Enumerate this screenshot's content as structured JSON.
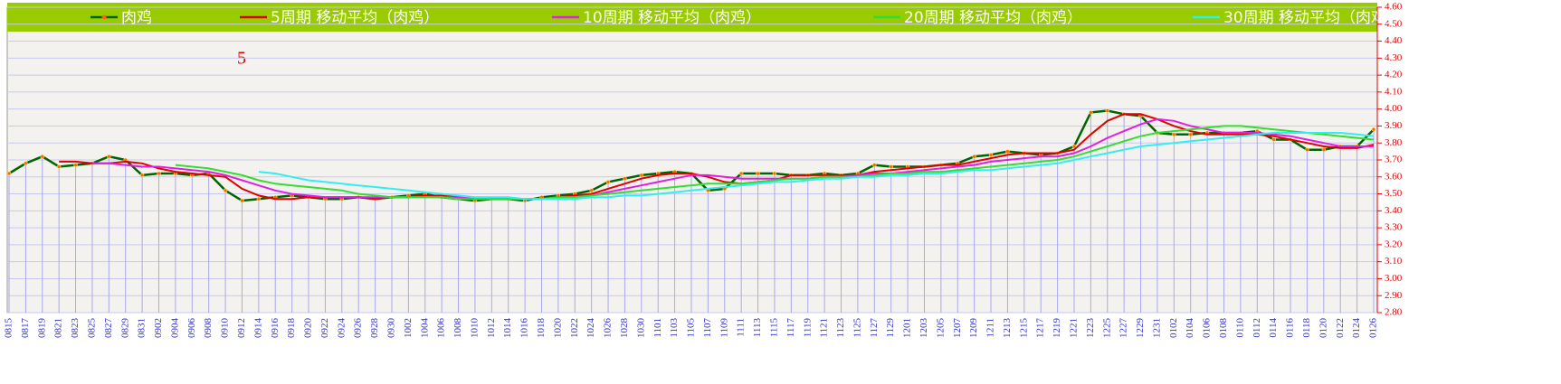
{
  "chart_data": {
    "type": "line",
    "annotations": [
      "5"
    ],
    "categories": [
      "0815",
      "0817",
      "0819",
      "0821",
      "0823",
      "0825",
      "0827",
      "0829",
      "0831",
      "0902",
      "0904",
      "0906",
      "0908",
      "0910",
      "0912",
      "0914",
      "0916",
      "0918",
      "0920",
      "0922",
      "0924",
      "0926",
      "0928",
      "0930",
      "1002",
      "1004",
      "1006",
      "1008",
      "1010",
      "1012",
      "1014",
      "1016",
      "1018",
      "1020",
      "1022",
      "1024",
      "1026",
      "1028",
      "1030",
      "1101",
      "1103",
      "1105",
      "1107",
      "1109",
      "1111",
      "1113",
      "1115",
      "1117",
      "1119",
      "1121",
      "1123",
      "1125",
      "1127",
      "1129",
      "1201",
      "1203",
      "1205",
      "1207",
      "1209",
      "1211",
      "1213",
      "1215",
      "1217",
      "1219",
      "1221",
      "1223",
      "1225",
      "1227",
      "1229",
      "1231",
      "0102",
      "0104",
      "0106",
      "0108",
      "0110",
      "0112",
      "0114",
      "0116",
      "0118",
      "0120",
      "0122",
      "0124",
      "0126"
    ],
    "series": [
      {
        "name": "肉鸡",
        "color": "#006400",
        "marker": "#ff6600",
        "values": [
          3.62,
          3.68,
          3.72,
          3.66,
          3.67,
          3.68,
          3.72,
          3.7,
          3.61,
          3.62,
          3.62,
          3.61,
          3.62,
          3.52,
          3.46,
          3.47,
          3.48,
          3.49,
          3.48,
          3.47,
          3.47,
          3.48,
          3.47,
          3.48,
          3.49,
          3.5,
          3.48,
          3.47,
          3.46,
          3.47,
          3.47,
          3.46,
          3.48,
          3.49,
          3.5,
          3.52,
          3.57,
          3.59,
          3.61,
          3.62,
          3.63,
          3.62,
          3.52,
          3.53,
          3.62,
          3.62,
          3.62,
          3.61,
          3.61,
          3.62,
          3.61,
          3.62,
          3.67,
          3.66,
          3.66,
          3.66,
          3.67,
          3.68,
          3.72,
          3.73,
          3.75,
          3.74,
          3.73,
          3.74,
          3.78,
          3.98,
          3.99,
          3.97,
          3.96,
          3.86,
          3.85,
          3.85,
          3.86,
          3.86,
          3.86,
          3.87,
          3.82,
          3.82,
          3.76,
          3.76,
          3.78,
          3.78,
          3.88
        ]
      },
      {
        "name": "5周期 移动平均（肉鸡）",
        "color": "#e00000",
        "values": [
          null,
          null,
          null,
          3.69,
          3.69,
          3.68,
          3.68,
          3.69,
          3.68,
          3.65,
          3.63,
          3.62,
          3.61,
          3.6,
          3.53,
          3.49,
          3.47,
          3.47,
          3.48,
          3.48,
          3.48,
          3.48,
          3.47,
          3.48,
          3.48,
          3.49,
          3.49,
          3.48,
          3.47,
          3.47,
          3.47,
          3.47,
          3.47,
          3.48,
          3.49,
          3.5,
          3.53,
          3.56,
          3.59,
          3.61,
          3.62,
          3.62,
          3.6,
          3.57,
          3.56,
          3.57,
          3.58,
          3.61,
          3.61,
          3.61,
          3.61,
          3.61,
          3.63,
          3.64,
          3.65,
          3.66,
          3.67,
          3.67,
          3.69,
          3.71,
          3.73,
          3.74,
          3.74,
          3.74,
          3.76,
          3.85,
          3.93,
          3.97,
          3.97,
          3.94,
          3.9,
          3.87,
          3.85,
          3.85,
          3.85,
          3.85,
          3.84,
          3.82,
          3.8,
          3.78,
          3.77,
          3.77,
          3.79
        ]
      },
      {
        "name": "10周期 移动平均（肉鸡）",
        "color": "#e020e0",
        "values": [
          null,
          null,
          null,
          null,
          null,
          3.68,
          3.68,
          3.67,
          3.66,
          3.66,
          3.65,
          3.64,
          3.63,
          3.61,
          3.58,
          3.55,
          3.52,
          3.5,
          3.49,
          3.48,
          3.48,
          3.48,
          3.48,
          3.48,
          3.48,
          3.48,
          3.48,
          3.48,
          3.47,
          3.47,
          3.47,
          3.47,
          3.47,
          3.48,
          3.48,
          3.49,
          3.51,
          3.53,
          3.55,
          3.57,
          3.59,
          3.61,
          3.61,
          3.6,
          3.59,
          3.59,
          3.59,
          3.59,
          3.59,
          3.6,
          3.6,
          3.61,
          3.62,
          3.62,
          3.63,
          3.64,
          3.65,
          3.66,
          3.67,
          3.69,
          3.7,
          3.71,
          3.72,
          3.72,
          3.74,
          3.78,
          3.83,
          3.87,
          3.91,
          3.94,
          3.93,
          3.9,
          3.88,
          3.86,
          3.86,
          3.86,
          3.85,
          3.84,
          3.82,
          3.8,
          3.78,
          3.78,
          3.78
        ]
      },
      {
        "name": "20周期 移动平均（肉鸡）",
        "color": "#33dd33",
        "values": [
          null,
          null,
          null,
          null,
          null,
          null,
          null,
          null,
          null,
          null,
          3.67,
          3.66,
          3.65,
          3.63,
          3.61,
          3.58,
          3.56,
          3.55,
          3.54,
          3.53,
          3.52,
          3.5,
          3.49,
          3.48,
          3.48,
          3.48,
          3.48,
          3.47,
          3.47,
          3.47,
          3.47,
          3.47,
          3.47,
          3.48,
          3.48,
          3.49,
          3.5,
          3.51,
          3.52,
          3.53,
          3.54,
          3.55,
          3.56,
          3.56,
          3.56,
          3.57,
          3.58,
          3.59,
          3.59,
          3.6,
          3.6,
          3.6,
          3.61,
          3.62,
          3.62,
          3.63,
          3.63,
          3.64,
          3.65,
          3.66,
          3.67,
          3.68,
          3.69,
          3.7,
          3.72,
          3.75,
          3.78,
          3.81,
          3.84,
          3.86,
          3.87,
          3.88,
          3.89,
          3.9,
          3.9,
          3.89,
          3.88,
          3.87,
          3.86,
          3.85,
          3.84,
          3.83,
          3.82
        ]
      },
      {
        "name": "30周期 移动平均（肉鸡）",
        "color": "#33eeee",
        "values": [
          null,
          null,
          null,
          null,
          null,
          null,
          null,
          null,
          null,
          null,
          null,
          null,
          null,
          null,
          null,
          3.63,
          3.62,
          3.6,
          3.58,
          3.57,
          3.56,
          3.55,
          3.54,
          3.53,
          3.52,
          3.51,
          3.5,
          3.49,
          3.48,
          3.48,
          3.48,
          3.47,
          3.47,
          3.47,
          3.47,
          3.48,
          3.48,
          3.49,
          3.49,
          3.5,
          3.51,
          3.52,
          3.53,
          3.54,
          3.55,
          3.56,
          3.57,
          3.57,
          3.58,
          3.59,
          3.59,
          3.6,
          3.6,
          3.61,
          3.61,
          3.62,
          3.62,
          3.63,
          3.64,
          3.64,
          3.65,
          3.66,
          3.67,
          3.68,
          3.7,
          3.72,
          3.74,
          3.76,
          3.78,
          3.79,
          3.8,
          3.81,
          3.82,
          3.83,
          3.84,
          3.85,
          3.86,
          3.86,
          3.86,
          3.86,
          3.86,
          3.85,
          3.84
        ]
      }
    ],
    "ylim": [
      2.8,
      4.6
    ],
    "yticks": [
      {
        "value": 2.8,
        "label": "2.80"
      },
      {
        "value": 2.9,
        "label": "2.90"
      },
      {
        "value": 3.0,
        "label": "3.00"
      },
      {
        "value": 3.1,
        "label": "3.10"
      },
      {
        "value": 3.2,
        "label": "3.20"
      },
      {
        "value": 3.3,
        "label": "3.30"
      },
      {
        "value": 3.4,
        "label": "3.40"
      },
      {
        "value": 3.5,
        "label": "3.50"
      },
      {
        "value": 3.6,
        "label": "3.60"
      },
      {
        "value": 3.7,
        "label": "3.70"
      },
      {
        "value": 3.8,
        "label": "3.80"
      },
      {
        "value": 3.9,
        "label": "3.90"
      },
      {
        "value": 4.0,
        "label": "4.00"
      },
      {
        "value": 4.1,
        "label": "4.10"
      },
      {
        "value": 4.2,
        "label": "4.20"
      },
      {
        "value": 4.3,
        "label": "4.30"
      },
      {
        "value": 4.4,
        "label": "4.40"
      },
      {
        "value": 4.5,
        "label": "4.50"
      },
      {
        "value": 4.6,
        "label": "4.60"
      }
    ],
    "grid": true,
    "legend": "top"
  }
}
